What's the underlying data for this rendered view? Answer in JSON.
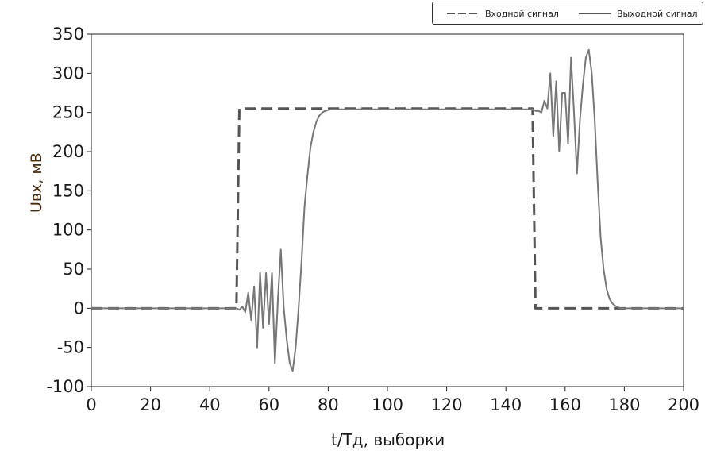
{
  "chart_data": {
    "type": "line",
    "xlabel": "t/Тд, выборки",
    "ylabel": "Uвх, мВ",
    "xlim": [
      0,
      200
    ],
    "ylim": [
      -100,
      350
    ],
    "xticks": [
      0,
      20,
      40,
      60,
      80,
      100,
      120,
      140,
      160,
      180,
      200
    ],
    "yticks": [
      -100,
      -50,
      0,
      50,
      100,
      150,
      200,
      250,
      300,
      350
    ],
    "xtick_labels": [
      "0",
      "20",
      "40",
      "60",
      "80",
      "100",
      "120",
      "140",
      "160",
      "180",
      "200"
    ],
    "ytick_labels": [
      "-100",
      "-50",
      "0",
      "50",
      "100",
      "150",
      "200",
      "250",
      "300",
      "350"
    ],
    "grid": false,
    "legend_position": "top-right",
    "series": [
      {
        "name": "Входной сигнал",
        "style": "dashed",
        "color": "#555555",
        "x": [
          0,
          49,
          50,
          149,
          150,
          200
        ],
        "y": [
          0,
          0,
          255,
          255,
          0,
          0
        ]
      },
      {
        "name": "Выходной сигнал",
        "style": "solid",
        "color": "#777777",
        "x": [
          0,
          49,
          50,
          51,
          52,
          53,
          54,
          55,
          56,
          57,
          58,
          59,
          60,
          61,
          62,
          63,
          64,
          65,
          66,
          67,
          68,
          69,
          70,
          71,
          72,
          73,
          74,
          75,
          76,
          77,
          78,
          79,
          80,
          81,
          82,
          84,
          86,
          90,
          100,
          149,
          150,
          151,
          152,
          153,
          154,
          155,
          156,
          157,
          158,
          159,
          160,
          161,
          162,
          163,
          164,
          165,
          166,
          167,
          168,
          169,
          170,
          171,
          172,
          173,
          174,
          175,
          176,
          177,
          178,
          179,
          180,
          200
        ],
        "y": [
          0,
          0,
          -2,
          2,
          -5,
          20,
          -15,
          28,
          -50,
          45,
          -25,
          45,
          -20,
          45,
          -70,
          10,
          75,
          0,
          -40,
          -70,
          -80,
          -50,
          0,
          60,
          130,
          170,
          205,
          225,
          238,
          246,
          250,
          252,
          253,
          254,
          254,
          254,
          254,
          254,
          254,
          254,
          252,
          252,
          250,
          265,
          255,
          300,
          220,
          290,
          200,
          275,
          275,
          210,
          320,
          250,
          172,
          240,
          285,
          320,
          330,
          300,
          240,
          160,
          90,
          50,
          25,
          12,
          6,
          3,
          1,
          0,
          0,
          0
        ]
      }
    ]
  }
}
